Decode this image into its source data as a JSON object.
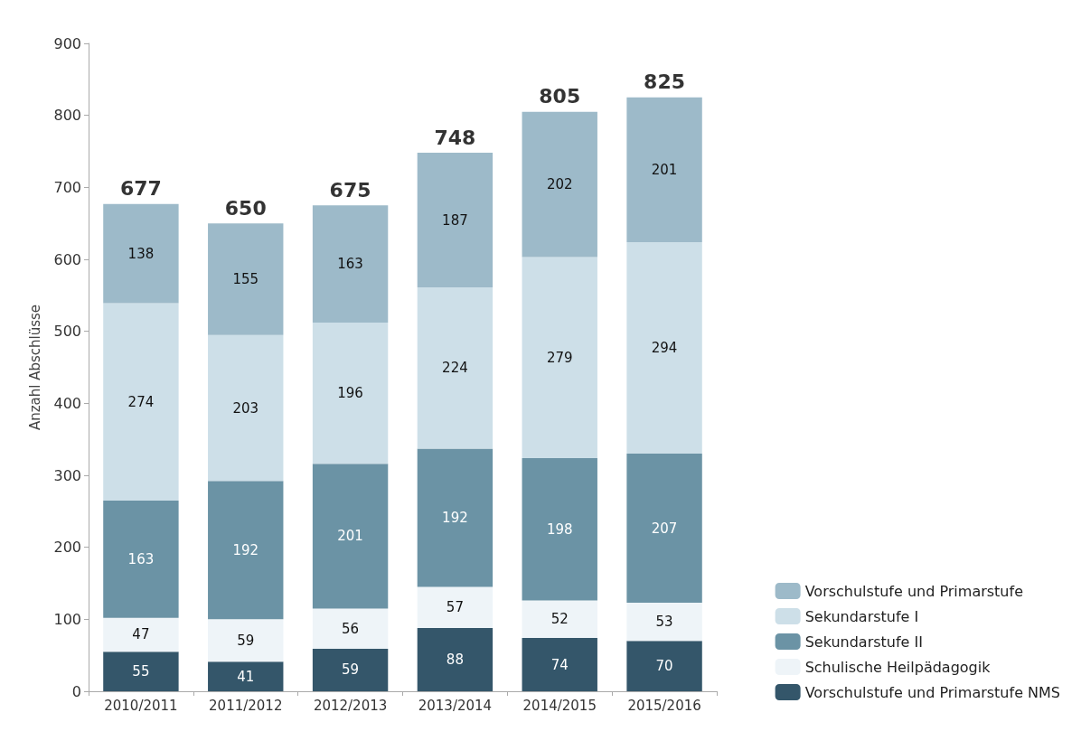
{
  "chart_data": {
    "type": "bar",
    "stacked": true,
    "ylabel": "Anzahl Abschlüsse",
    "categories": [
      "2010/2011",
      "2011/2012",
      "2012/2013",
      "2013/2014",
      "2014/2015",
      "2015/2016"
    ],
    "series": [
      {
        "name": "Vorschulstufe und Primarstufe NMS",
        "color": "#34566a",
        "values": [
          55,
          41,
          59,
          88,
          74,
          70
        ]
      },
      {
        "name": "Schulische Heilpädagogik",
        "color": "#eef4f8",
        "values": [
          47,
          59,
          56,
          57,
          52,
          53
        ]
      },
      {
        "name": "Sekundarstufe II",
        "color": "#6b93a5",
        "values": [
          163,
          192,
          201,
          192,
          198,
          207
        ]
      },
      {
        "name": "Sekundarstufe I",
        "color": "#cddfe8",
        "values": [
          274,
          203,
          196,
          224,
          279,
          294
        ]
      },
      {
        "name": "Vorschulstufe und Primarstufe",
        "color": "#9dbac9",
        "values": [
          138,
          155,
          163,
          187,
          202,
          201
        ]
      }
    ],
    "totals": [
      "677",
      "650",
      "675",
      "748",
      "805",
      "825"
    ],
    "ylim": [
      0,
      900
    ],
    "yticks": [
      0,
      100,
      200,
      300,
      400,
      500,
      600,
      700,
      800,
      900
    ],
    "data_labels": true,
    "grid": false,
    "legend": "bottom right"
  }
}
